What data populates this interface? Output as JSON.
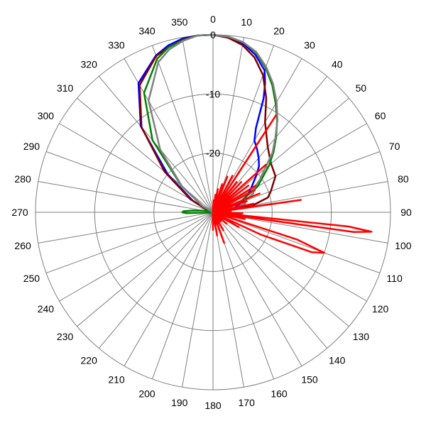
{
  "chart_data": {
    "type": "polar-line",
    "title": "",
    "angle_direction": "clockwise",
    "angle_zero": "top",
    "angle_ticks": [
      0,
      10,
      20,
      30,
      40,
      50,
      60,
      70,
      80,
      90,
      100,
      110,
      120,
      130,
      140,
      150,
      160,
      170,
      180,
      190,
      200,
      210,
      220,
      230,
      240,
      250,
      260,
      270,
      280,
      290,
      300,
      310,
      320,
      330,
      340,
      350
    ],
    "angle_tick_labels": [
      "0",
      "10",
      "20",
      "30",
      "40",
      "50",
      "60",
      "70",
      "80",
      "90",
      "100",
      "110",
      "120",
      "130",
      "140",
      "150",
      "160",
      "170",
      "180",
      "190",
      "200",
      "210",
      "220",
      "230",
      "240",
      "250",
      "260",
      "270",
      "280",
      "290",
      "300",
      "310",
      "320",
      "330",
      "340",
      "350"
    ],
    "radial_ticks": [
      0,
      -10,
      -20
    ],
    "radial_tick_labels": [
      "0",
      "-10",
      "-20"
    ],
    "rlim": [
      -30,
      0
    ],
    "grid": true,
    "series": [
      {
        "color": "#0000ff",
        "angles": [
          0,
          5,
          10,
          15,
          20,
          22,
          24,
          25,
          27,
          30,
          35,
          40,
          45,
          50,
          60,
          70,
          80,
          85,
          90,
          100,
          120,
          150,
          180,
          210,
          240,
          260,
          270,
          280,
          290,
          300,
          310,
          320,
          330,
          340,
          345,
          350,
          355
        ],
        "values": [
          0,
          -0.3,
          -1,
          -2.4,
          -4.5,
          -6.5,
          -9,
          -11,
          -14,
          -16,
          -17,
          -18,
          -19,
          -20.5,
          -22.8,
          -24.5,
          -26.5,
          -29,
          -30,
          -30,
          -30,
          -30,
          -30,
          -30,
          -30,
          -30,
          -30,
          -30,
          -29,
          -26,
          -20,
          -11,
          -4.8,
          -1.8,
          -0.8,
          -0.2,
          0
        ]
      },
      {
        "color": "#800000",
        "angles": [
          0,
          5,
          10,
          15,
          20,
          25,
          30,
          40,
          50,
          60,
          70,
          75,
          80,
          90,
          100,
          150,
          200,
          260,
          270,
          280,
          290,
          300,
          310,
          320,
          330,
          340,
          345,
          350,
          355
        ],
        "values": [
          0,
          -0.4,
          -1.3,
          -2.9,
          -5.3,
          -8.7,
          -12.4,
          -15.6,
          -17.2,
          -17.8,
          -19.6,
          -20.4,
          -23.2,
          -29,
          -30,
          -30,
          -30,
          -30,
          -30,
          -30,
          -29,
          -25.6,
          -19.3,
          -11.2,
          -5.2,
          -1.9,
          -1.1,
          -0.4,
          0
        ]
      },
      {
        "color": "#008000",
        "angles": [
          0,
          5,
          10,
          15,
          20,
          25,
          30,
          35,
          40,
          45,
          50,
          60,
          70,
          80,
          90,
          150,
          200,
          250,
          260,
          265,
          268,
          270,
          272,
          275,
          280,
          285,
          290,
          300,
          310,
          320,
          330,
          340,
          345,
          350,
          355
        ],
        "values": [
          0,
          -0.2,
          -0.8,
          -2,
          -4,
          -6.3,
          -8.8,
          -11.1,
          -13.4,
          -15.5,
          -17.6,
          -21.3,
          -25.3,
          -29,
          -30,
          -30,
          -30,
          -30,
          -30,
          -29.5,
          -25.5,
          -24.8,
          -25,
          -26.5,
          -28.5,
          -29.5,
          -30,
          -28,
          -23,
          -14.1,
          -6.7,
          -2.4,
          -1.1,
          -0.5,
          0
        ]
      },
      {
        "color": "#808080",
        "angles": [
          0,
          5,
          10,
          15,
          20,
          25,
          30,
          35,
          40,
          45,
          50,
          55,
          60,
          65,
          70,
          75,
          80,
          85,
          90,
          180,
          270,
          280,
          290,
          300,
          310,
          320,
          330,
          340,
          345,
          350,
          355
        ],
        "values": [
          0,
          -0.2,
          -0.8,
          -1.9,
          -3.8,
          -6,
          -8.5,
          -11,
          -13.6,
          -15.8,
          -18.6,
          -20.3,
          -22,
          -22.5,
          -24.1,
          -24.4,
          -26.5,
          -29,
          -30,
          -30,
          -30,
          -30,
          -30,
          -28,
          -23.1,
          -16.1,
          -8.2,
          -3,
          -1.5,
          -0.6,
          0
        ]
      },
      {
        "color": "#ff0000",
        "angles": [
          0,
          2,
          5,
          8,
          10,
          12,
          15,
          18,
          20,
          22,
          25,
          28,
          30,
          33,
          35,
          38,
          40,
          43,
          45,
          48,
          50,
          53,
          55,
          58,
          60,
          62,
          65,
          68,
          70,
          72,
          75,
          78,
          80,
          82,
          85,
          87,
          90,
          92,
          93,
          95,
          96,
          97,
          98,
          100,
          102,
          105,
          108,
          110,
          112,
          115,
          118,
          120,
          125,
          130,
          135,
          140,
          145,
          150,
          155,
          160,
          165,
          170,
          175,
          180,
          185,
          190,
          200,
          240,
          270,
          300,
          330,
          355
        ],
        "values": [
          -30,
          -28,
          -29.5,
          -27,
          -29.8,
          -26,
          -29.5,
          -25,
          -29.8,
          -23.5,
          -29.5,
          -23,
          -29.8,
          -10.5,
          -29.5,
          -23.5,
          -29.8,
          -23,
          -29.5,
          -18,
          -29.8,
          -22.5,
          -29.5,
          -21.5,
          -29.8,
          -22,
          -29.5,
          -21.5,
          -29.8,
          -24,
          -29.5,
          -23,
          -29.8,
          -15,
          -29,
          -27,
          -29.7,
          -25,
          -27,
          -29.5,
          -7,
          -3,
          -6,
          -29.5,
          -24.5,
          -29.5,
          -15,
          -10,
          -12,
          -21,
          -29.5,
          -25,
          -29.5,
          -27,
          -29.5,
          -28,
          -29.5,
          -26.5,
          -29.5,
          -24.5,
          -29.5,
          -26,
          -29.5,
          -27,
          -29.5,
          -30,
          -30,
          -30,
          -30,
          -30,
          -30,
          -30
        ]
      }
    ]
  }
}
